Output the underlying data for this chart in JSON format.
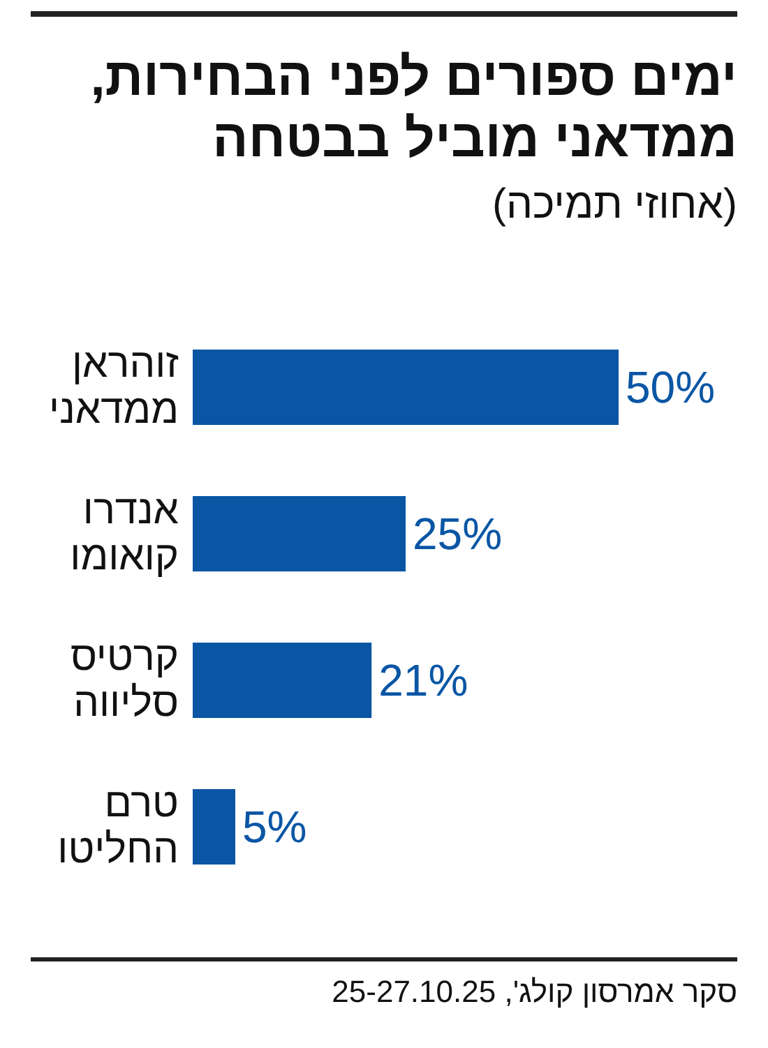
{
  "chart_data": {
    "type": "bar",
    "orientation": "horizontal",
    "title": "ימים ספורים לפני הבחירות, ממדאני מוביל בבטחה",
    "subtitle": "(אחוזי תמיכה)",
    "categories": [
      "זוהראן ממדאני",
      "אנדרו קואומו",
      "קרטיס סליווה",
      "טרם החליטו"
    ],
    "values": [
      50,
      25,
      21,
      5
    ],
    "color": "#0a56a5",
    "value_labels": [
      "50%",
      "25%",
      "21%",
      "5%"
    ],
    "annotations": [
      "סקר אמרסון קולג', 25-27.10.25"
    ]
  }
}
